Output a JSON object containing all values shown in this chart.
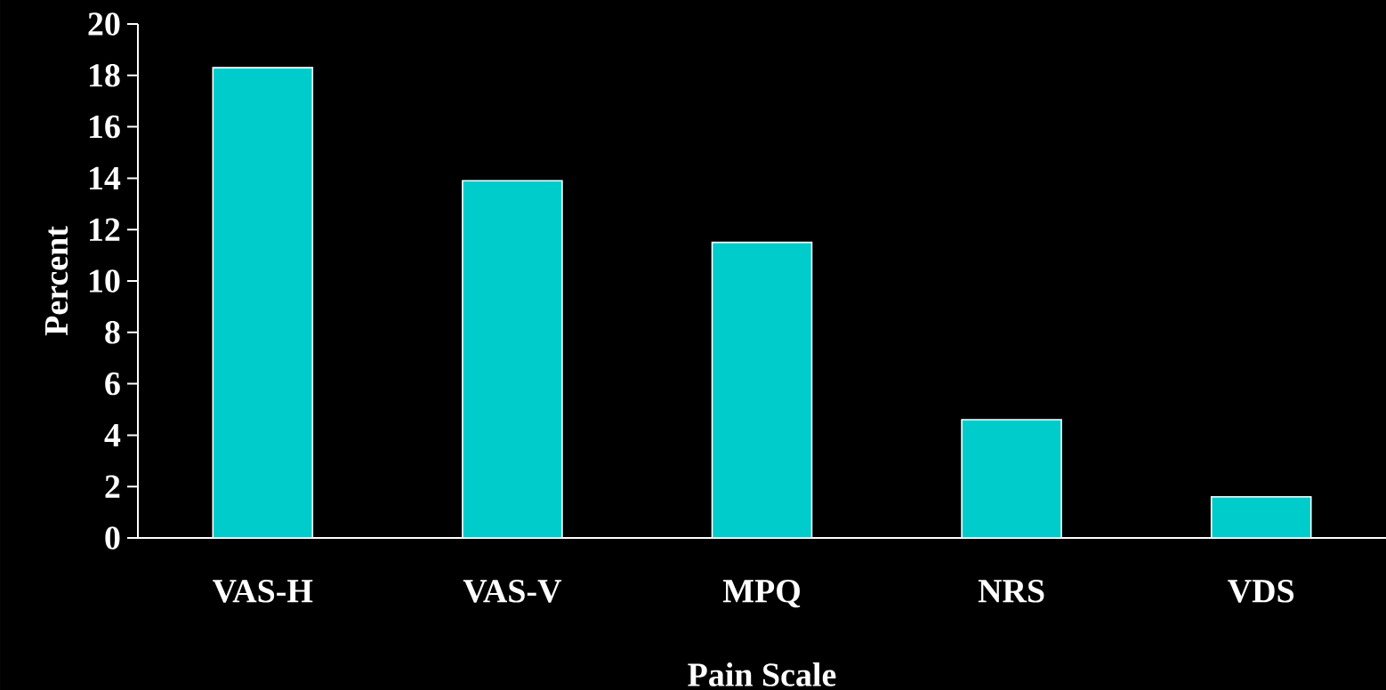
{
  "chart_data": {
    "type": "bar",
    "xlabel": "Pain Scale",
    "ylabel": "Percent",
    "categories": [
      "VAS-H",
      "VAS-V",
      "MPQ",
      "NRS",
      "VDS"
    ],
    "values": [
      18.3,
      13.9,
      11.5,
      4.6,
      1.6
    ],
    "color": "#00cccc",
    "ylim": [
      0,
      20
    ],
    "yticks": [
      0,
      2,
      4,
      6,
      8,
      10,
      12,
      14,
      16,
      18,
      20
    ]
  }
}
